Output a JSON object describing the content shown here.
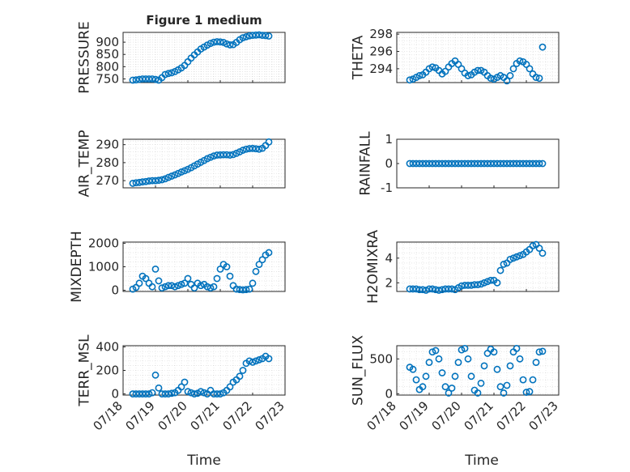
{
  "figure": {
    "title": "Figure 1 medium",
    "xlabel_left": "Time",
    "xlabel_right": "Time",
    "marker_color": "#0072bd",
    "x_tick_labels": [
      "07/18",
      "07/19",
      "07/20",
      "07/21",
      "07/22",
      "07/23"
    ]
  },
  "chart_data": [
    {
      "type": "scatter",
      "ylabel": "PRESSURE",
      "xlim": [
        0,
        5
      ],
      "ylim": [
        735,
        940
      ],
      "yticks": [
        750,
        800,
        850,
        900
      ],
      "ytick_labels": [
        "750",
        "800",
        "850",
        "900"
      ],
      "grid": true,
      "x": [
        0.3,
        0.4,
        0.5,
        0.6,
        0.7,
        0.8,
        0.9,
        1.0,
        1.1,
        1.2,
        1.3,
        1.4,
        1.5,
        1.6,
        1.7,
        1.8,
        1.9,
        2.0,
        2.1,
        2.2,
        2.3,
        2.4,
        2.5,
        2.6,
        2.7,
        2.8,
        2.9,
        3.0,
        3.1,
        3.2,
        3.3,
        3.4,
        3.5,
        3.6,
        3.7,
        3.8,
        3.9,
        4.0,
        4.1,
        4.2,
        4.3,
        4.4,
        4.5
      ],
      "y": [
        745,
        746,
        748,
        750,
        750,
        750,
        750,
        748,
        745,
        755,
        768,
        772,
        775,
        780,
        787,
        795,
        805,
        820,
        835,
        848,
        860,
        872,
        880,
        888,
        895,
        900,
        902,
        901,
        899,
        893,
        889,
        890,
        899,
        910,
        918,
        922,
        926,
        928,
        929,
        930,
        928,
        927,
        925
      ]
    },
    {
      "type": "scatter",
      "ylabel": "THETA",
      "xlim": [
        0,
        5
      ],
      "ylim": [
        292.4,
        298.2
      ],
      "yticks": [
        294,
        296,
        298
      ],
      "ytick_labels": [
        "294",
        "296",
        "298"
      ],
      "grid": true,
      "x": [
        0.4,
        0.5,
        0.6,
        0.7,
        0.8,
        0.9,
        1.0,
        1.1,
        1.2,
        1.3,
        1.4,
        1.5,
        1.6,
        1.7,
        1.8,
        1.9,
        2.0,
        2.1,
        2.2,
        2.3,
        2.4,
        2.5,
        2.6,
        2.7,
        2.8,
        2.9,
        3.0,
        3.1,
        3.2,
        3.3,
        3.4,
        3.5,
        3.6,
        3.7,
        3.8,
        3.9,
        4.0,
        4.1,
        4.2,
        4.3,
        4.4,
        4.5
      ],
      "y": [
        292.7,
        292.8,
        293.0,
        293.2,
        293.3,
        293.6,
        294.0,
        294.2,
        294.1,
        293.8,
        293.4,
        293.7,
        294.2,
        294.6,
        294.9,
        294.5,
        294.0,
        293.5,
        293.2,
        293.3,
        293.6,
        293.8,
        293.8,
        293.6,
        293.2,
        292.9,
        292.8,
        293.0,
        293.2,
        293.0,
        292.6,
        293.2,
        294.0,
        294.6,
        294.9,
        294.8,
        294.5,
        294.0,
        293.4,
        293.0,
        292.9,
        296.5
      ]
    },
    {
      "type": "scatter",
      "ylabel": "AIR_TEMP",
      "xlim": [
        0,
        5
      ],
      "ylim": [
        266,
        293
      ],
      "yticks": [
        270,
        280,
        290
      ],
      "ytick_labels": [
        "270",
        "280",
        "290"
      ],
      "grid": true,
      "x": [
        0.3,
        0.4,
        0.5,
        0.6,
        0.7,
        0.8,
        0.9,
        1.0,
        1.1,
        1.2,
        1.3,
        1.4,
        1.5,
        1.6,
        1.7,
        1.8,
        1.9,
        2.0,
        2.1,
        2.2,
        2.3,
        2.4,
        2.5,
        2.6,
        2.7,
        2.8,
        2.9,
        3.0,
        3.1,
        3.2,
        3.3,
        3.4,
        3.5,
        3.6,
        3.7,
        3.8,
        3.9,
        4.0,
        4.1,
        4.2,
        4.3,
        4.4,
        4.5
      ],
      "y": [
        268.5,
        268.8,
        269.0,
        269.3,
        269.5,
        269.8,
        270.0,
        270.0,
        270.2,
        270.5,
        271.0,
        271.8,
        272.5,
        273.2,
        274.0,
        274.8,
        275.5,
        276.3,
        277.2,
        278.2,
        279.2,
        280.2,
        281.2,
        282.2,
        283.0,
        283.7,
        284.2,
        284.3,
        284.4,
        284.4,
        284.2,
        284.5,
        285.2,
        286.0,
        286.9,
        287.5,
        287.8,
        287.9,
        287.7,
        287.5,
        288.0,
        289.5,
        291.5
      ]
    },
    {
      "type": "scatter",
      "ylabel": "RAINFALL",
      "xlim": [
        0,
        5
      ],
      "ylim": [
        -1,
        1
      ],
      "yticks": [
        -1,
        0,
        1
      ],
      "ytick_labels": [
        "-1",
        "0",
        "1"
      ],
      "grid": false,
      "x": [
        0.4,
        0.5,
        0.6,
        0.7,
        0.8,
        0.9,
        1.0,
        1.1,
        1.2,
        1.3,
        1.4,
        1.5,
        1.6,
        1.7,
        1.8,
        1.9,
        2.0,
        2.1,
        2.2,
        2.3,
        2.4,
        2.5,
        2.6,
        2.7,
        2.8,
        2.9,
        3.0,
        3.1,
        3.2,
        3.3,
        3.4,
        3.5,
        3.6,
        3.7,
        3.8,
        3.9,
        4.0,
        4.1,
        4.2,
        4.3,
        4.4,
        4.5
      ],
      "y": [
        0,
        0,
        0,
        0,
        0,
        0,
        0,
        0,
        0,
        0,
        0,
        0,
        0,
        0,
        0,
        0,
        0,
        0,
        0,
        0,
        0,
        0,
        0,
        0,
        0,
        0,
        0,
        0,
        0,
        0,
        0,
        0,
        0,
        0,
        0,
        0,
        0,
        0,
        0,
        0,
        0,
        0
      ]
    },
    {
      "type": "scatter",
      "ylabel": "MIXDEPTH",
      "xlim": [
        0,
        5
      ],
      "ylim": [
        -50,
        2050
      ],
      "yticks": [
        0,
        1000,
        2000
      ],
      "ytick_labels": [
        "0",
        "1000",
        "2000"
      ],
      "grid": true,
      "x": [
        0.3,
        0.4,
        0.5,
        0.6,
        0.7,
        0.8,
        0.9,
        1.0,
        1.1,
        1.2,
        1.3,
        1.4,
        1.5,
        1.6,
        1.7,
        1.8,
        1.9,
        2.0,
        2.1,
        2.2,
        2.3,
        2.4,
        2.5,
        2.6,
        2.7,
        2.8,
        2.9,
        3.0,
        3.1,
        3.2,
        3.3,
        3.4,
        3.5,
        3.6,
        3.7,
        3.8,
        3.9,
        4.0,
        4.1,
        4.2,
        4.3,
        4.4,
        4.5
      ],
      "y": [
        50,
        120,
        300,
        600,
        500,
        300,
        150,
        900,
        400,
        100,
        150,
        200,
        200,
        150,
        200,
        250,
        300,
        500,
        250,
        100,
        300,
        200,
        250,
        150,
        100,
        150,
        500,
        900,
        1100,
        1000,
        600,
        200,
        50,
        30,
        20,
        30,
        50,
        300,
        800,
        1100,
        1300,
        1500,
        1600
      ]
    },
    {
      "type": "scatter",
      "ylabel": "H2OMIXRA",
      "xlim": [
        0,
        5
      ],
      "ylim": [
        1.3,
        5.3
      ],
      "yticks": [
        2,
        4
      ],
      "ytick_labels": [
        "2",
        "4"
      ],
      "grid": true,
      "x": [
        0.4,
        0.5,
        0.6,
        0.7,
        0.8,
        0.9,
        1.0,
        1.1,
        1.2,
        1.3,
        1.4,
        1.5,
        1.6,
        1.7,
        1.8,
        1.9,
        2.0,
        2.1,
        2.2,
        2.3,
        2.4,
        2.5,
        2.6,
        2.7,
        2.8,
        2.9,
        3.0,
        3.1,
        3.2,
        3.3,
        3.4,
        3.5,
        3.6,
        3.7,
        3.8,
        3.9,
        4.0,
        4.1,
        4.2,
        4.3,
        4.4,
        4.5
      ],
      "y": [
        1.5,
        1.5,
        1.5,
        1.45,
        1.45,
        1.4,
        1.5,
        1.5,
        1.45,
        1.4,
        1.45,
        1.5,
        1.5,
        1.5,
        1.45,
        1.6,
        1.75,
        1.8,
        1.8,
        1.8,
        1.85,
        1.85,
        1.9,
        2.0,
        2.1,
        2.2,
        2.2,
        2.0,
        3.0,
        3.5,
        3.6,
        3.9,
        4.0,
        4.1,
        4.2,
        4.3,
        4.5,
        4.7,
        5.0,
        5.1,
        4.8,
        4.4
      ]
    },
    {
      "type": "scatter",
      "ylabel": "TERR_MSL",
      "xlim": [
        0,
        5
      ],
      "ylim": [
        -10,
        410
      ],
      "yticks": [
        0,
        200,
        400
      ],
      "ytick_labels": [
        "0",
        "200",
        "400"
      ],
      "grid": true,
      "x": [
        0.3,
        0.4,
        0.5,
        0.6,
        0.7,
        0.8,
        0.9,
        1.0,
        1.1,
        1.2,
        1.3,
        1.4,
        1.5,
        1.6,
        1.7,
        1.8,
        1.9,
        2.0,
        2.1,
        2.2,
        2.3,
        2.4,
        2.5,
        2.6,
        2.7,
        2.8,
        2.9,
        3.0,
        3.1,
        3.2,
        3.3,
        3.4,
        3.5,
        3.6,
        3.7,
        3.8,
        3.9,
        4.0,
        4.1,
        4.2,
        4.3,
        4.4,
        4.5
      ],
      "y": [
        0,
        0,
        0,
        0,
        0,
        0,
        10,
        160,
        50,
        0,
        0,
        0,
        5,
        10,
        30,
        60,
        100,
        20,
        10,
        0,
        5,
        20,
        10,
        0,
        30,
        0,
        0,
        0,
        10,
        30,
        60,
        100,
        120,
        150,
        200,
        260,
        280,
        270,
        280,
        290,
        300,
        320,
        300
      ]
    },
    {
      "type": "scatter",
      "ylabel": "SUN_FLUX",
      "xlim": [
        0,
        5
      ],
      "ylim": [
        -20,
        690
      ],
      "yticks": [
        0,
        500
      ],
      "ytick_labels": [
        "0",
        "500"
      ],
      "grid": true,
      "x": [
        0.4,
        0.5,
        0.6,
        0.7,
        0.8,
        0.9,
        1.0,
        1.1,
        1.2,
        1.3,
        1.4,
        1.5,
        1.6,
        1.7,
        1.8,
        1.9,
        2.0,
        2.1,
        2.2,
        2.3,
        2.4,
        2.5,
        2.6,
        2.7,
        2.8,
        2.9,
        3.0,
        3.1,
        3.2,
        3.3,
        3.4,
        3.5,
        3.6,
        3.7,
        3.8,
        3.9,
        4.0,
        4.1,
        4.2,
        4.3,
        4.4,
        4.5
      ],
      "y": [
        380,
        350,
        200,
        60,
        100,
        250,
        450,
        600,
        620,
        500,
        300,
        100,
        10,
        80,
        250,
        450,
        630,
        650,
        500,
        250,
        50,
        10,
        150,
        400,
        580,
        640,
        600,
        350,
        100,
        10,
        120,
        400,
        600,
        650,
        500,
        200,
        20,
        30,
        200,
        450,
        600,
        610
      ]
    }
  ]
}
